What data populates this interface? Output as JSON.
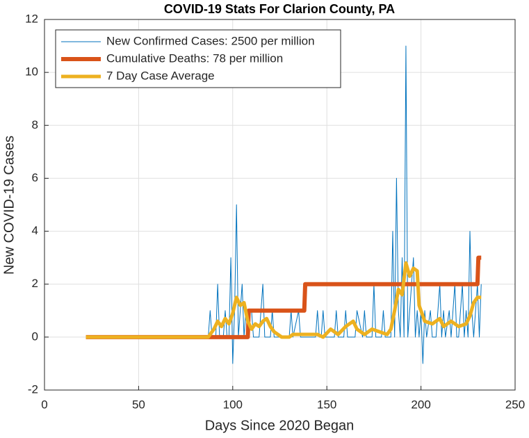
{
  "chart_data": {
    "type": "line",
    "title": "COVID-19 Stats For Clarion County, PA",
    "x_label": "Days Since 2020 Began",
    "y_label": "New COVID-19 Cases",
    "xlim": [
      0,
      250
    ],
    "xticks": [
      0,
      50,
      100,
      150,
      200,
      250
    ],
    "ylim": [
      -2,
      12
    ],
    "yticks": [
      -2,
      0,
      2,
      4,
      6,
      8,
      10,
      12
    ],
    "grid": true,
    "legend": "upper left",
    "series": [
      {
        "name": "New Confirmed Cases: 2500 per million",
        "color": "#0072BD",
        "width": 1,
        "x": [
          22,
          87,
          88,
          89,
          91,
          92,
          93,
          95,
          96,
          97,
          98,
          99,
          100,
          101,
          102,
          103,
          104,
          105,
          106,
          107,
          110,
          111,
          114,
          115,
          116,
          117,
          120,
          121,
          122,
          130,
          131,
          132,
          135,
          136,
          144,
          145,
          146,
          147,
          148,
          149,
          154,
          155,
          156,
          159,
          160,
          161,
          165,
          166,
          169,
          170,
          171,
          174,
          175,
          176,
          179,
          180,
          181,
          184,
          185,
          186,
          187,
          188,
          189,
          190,
          191,
          192,
          193,
          194,
          195,
          196,
          197,
          198,
          199,
          200,
          201,
          202,
          203,
          205,
          206,
          208,
          209,
          210,
          211,
          212,
          213,
          215,
          216,
          218,
          219,
          220,
          222,
          223,
          224,
          225,
          226,
          227,
          228,
          229,
          230,
          231,
          232
        ],
        "values": [
          0,
          0,
          1,
          0,
          0,
          2,
          0,
          0,
          1,
          0,
          0,
          3,
          -1,
          1,
          5,
          0,
          1,
          2,
          0,
          1,
          1,
          0,
          0,
          1,
          2,
          0,
          0,
          1,
          0,
          0,
          1,
          0,
          1,
          0,
          0,
          1,
          0,
          0,
          1,
          0,
          0,
          1,
          0,
          0,
          1,
          0,
          0,
          1,
          0,
          1,
          0,
          0,
          2,
          0,
          0,
          1,
          0,
          0,
          4,
          0,
          6,
          1,
          0,
          3,
          0,
          11,
          0,
          1,
          2,
          3,
          0,
          1,
          0,
          1,
          -1,
          1,
          0,
          1,
          0,
          0,
          1,
          2,
          0,
          1,
          0,
          1,
          0,
          2,
          0,
          0,
          2,
          0,
          1,
          0,
          4,
          1,
          0,
          1,
          2,
          0,
          2
        ]
      },
      {
        "name": "Cumulative Deaths: 78 per million",
        "color": "#D95319",
        "width": 6,
        "x": [
          22,
          108,
          108.5,
          138,
          138.5,
          230,
          230.5,
          232
        ],
        "values": [
          0,
          0,
          1,
          1,
          2,
          2,
          3,
          3
        ]
      },
      {
        "name": "7 Day Case Average",
        "color": "#EDB120",
        "width": 5,
        "x": [
          22,
          87,
          90,
          92,
          94,
          96,
          98,
          100,
          102,
          104,
          106,
          108,
          110,
          112,
          114,
          116,
          118,
          120,
          122,
          124,
          126,
          130,
          132,
          140,
          145,
          148,
          152,
          156,
          160,
          164,
          166,
          170,
          174,
          178,
          182,
          184,
          186,
          188,
          190,
          192,
          194,
          196,
          198,
          199,
          202,
          206,
          210,
          212,
          216,
          220,
          224,
          226,
          228,
          230,
          232
        ],
        "values": [
          0,
          0,
          0.3,
          0.6,
          0.4,
          0.7,
          0.5,
          0.9,
          1.5,
          1.2,
          1.3,
          0.6,
          0.3,
          0.5,
          0.4,
          0.6,
          0.7,
          0.4,
          0.2,
          0.1,
          0,
          0,
          0.1,
          0.1,
          0.1,
          0,
          0.3,
          0.1,
          0.4,
          0.6,
          0.3,
          0.1,
          0.3,
          0.2,
          0.1,
          0.3,
          1,
          1.8,
          1.6,
          2.8,
          2.3,
          2.6,
          2.5,
          1.2,
          0.6,
          0.5,
          0.7,
          0.4,
          0.6,
          0.4,
          0.5,
          0.8,
          1.3,
          1.5,
          1.5
        ]
      }
    ]
  }
}
